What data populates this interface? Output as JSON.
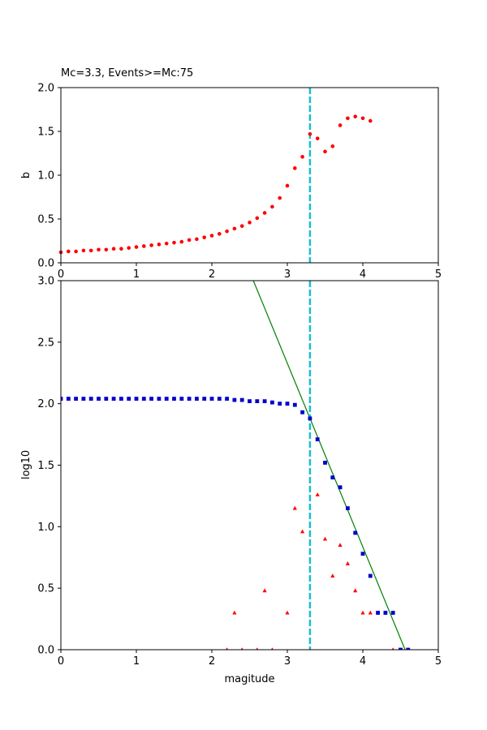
{
  "chart_data": [
    {
      "type": "scatter",
      "title": "Mc=3.3, Events>=Mc:75",
      "xlabel": "",
      "ylabel": "b",
      "xlim": [
        0,
        5
      ],
      "ylim": [
        0,
        2.0
      ],
      "xticks": [
        "0",
        "1",
        "2",
        "3",
        "4",
        "5"
      ],
      "yticks": [
        "0.0",
        "0.5",
        "1.0",
        "1.5",
        "2.0"
      ],
      "grid": false,
      "vline": {
        "x": 3.3,
        "color": "#17becf",
        "style": "dashed"
      },
      "series": [
        {
          "color": "#ff0000",
          "marker": "circle",
          "x": [
            0.0,
            0.1,
            0.2,
            0.3,
            0.4,
            0.5,
            0.6,
            0.7,
            0.8,
            0.9,
            1.0,
            1.1,
            1.2,
            1.3,
            1.4,
            1.5,
            1.6,
            1.7,
            1.8,
            1.9,
            2.0,
            2.1,
            2.2,
            2.3,
            2.4,
            2.5,
            2.6,
            2.7,
            2.8,
            2.9,
            3.0,
            3.1,
            3.2,
            3.3,
            3.4,
            3.5,
            3.6,
            3.7,
            3.8,
            3.9,
            4.0,
            4.1
          ],
          "y": [
            0.12,
            0.13,
            0.13,
            0.14,
            0.14,
            0.15,
            0.15,
            0.16,
            0.16,
            0.17,
            0.18,
            0.19,
            0.2,
            0.21,
            0.22,
            0.23,
            0.24,
            0.26,
            0.27,
            0.29,
            0.31,
            0.33,
            0.36,
            0.39,
            0.42,
            0.46,
            0.51,
            0.57,
            0.64,
            0.74,
            0.88,
            1.08,
            1.21,
            1.47,
            1.42,
            1.27,
            1.33,
            1.57,
            1.65,
            1.67,
            1.65,
            1.62
          ]
        }
      ]
    },
    {
      "type": "scatter",
      "title": "",
      "xlabel": "magitude",
      "ylabel": "log10",
      "xlim": [
        0,
        5
      ],
      "ylim": [
        0,
        3.0
      ],
      "xticks": [
        "0",
        "1",
        "2",
        "3",
        "4",
        "5"
      ],
      "yticks": [
        "0.0",
        "0.5",
        "1.0",
        "1.5",
        "2.0",
        "2.5",
        "3.0"
      ],
      "grid": false,
      "vline": {
        "x": 3.3,
        "color": "#17becf",
        "style": "dashed"
      },
      "fit_line": {
        "color": "#008000",
        "x": [
          2.55,
          4.56
        ],
        "y": [
          3.0,
          0.0
        ]
      },
      "series": [
        {
          "color": "#0000cc",
          "marker": "square",
          "x": [
            0.0,
            0.1,
            0.2,
            0.3,
            0.4,
            0.5,
            0.6,
            0.7,
            0.8,
            0.9,
            1.0,
            1.1,
            1.2,
            1.3,
            1.4,
            1.5,
            1.6,
            1.7,
            1.8,
            1.9,
            2.0,
            2.1,
            2.2,
            2.3,
            2.4,
            2.5,
            2.6,
            2.7,
            2.8,
            2.9,
            3.0,
            3.1,
            3.2,
            3.3,
            3.4,
            3.5,
            3.6,
            3.7,
            3.8,
            3.9,
            4.0,
            4.1,
            4.2,
            4.3,
            4.4,
            4.5,
            4.6
          ],
          "y": [
            2.04,
            2.04,
            2.04,
            2.04,
            2.04,
            2.04,
            2.04,
            2.04,
            2.04,
            2.04,
            2.04,
            2.04,
            2.04,
            2.04,
            2.04,
            2.04,
            2.04,
            2.04,
            2.04,
            2.04,
            2.04,
            2.04,
            2.04,
            2.03,
            2.03,
            2.02,
            2.02,
            2.02,
            2.01,
            2.0,
            2.0,
            1.99,
            1.93,
            1.88,
            1.71,
            1.52,
            1.4,
            1.32,
            1.15,
            0.95,
            0.78,
            0.6,
            0.3,
            0.3,
            0.3,
            0.0,
            0.0
          ]
        },
        {
          "color": "#ff0000",
          "marker": "triangle",
          "x": [
            2.2,
            2.3,
            2.4,
            2.6,
            2.7,
            2.8,
            3.0,
            3.1,
            3.2,
            3.4,
            3.5,
            3.6,
            3.7,
            3.8,
            3.9,
            4.0,
            4.1,
            4.4
          ],
          "y": [
            0.0,
            0.3,
            0.0,
            0.0,
            0.48,
            0.0,
            0.3,
            1.15,
            0.96,
            1.26,
            0.9,
            0.6,
            0.85,
            0.7,
            0.48,
            0.3,
            0.3,
            0.0
          ]
        }
      ]
    }
  ]
}
